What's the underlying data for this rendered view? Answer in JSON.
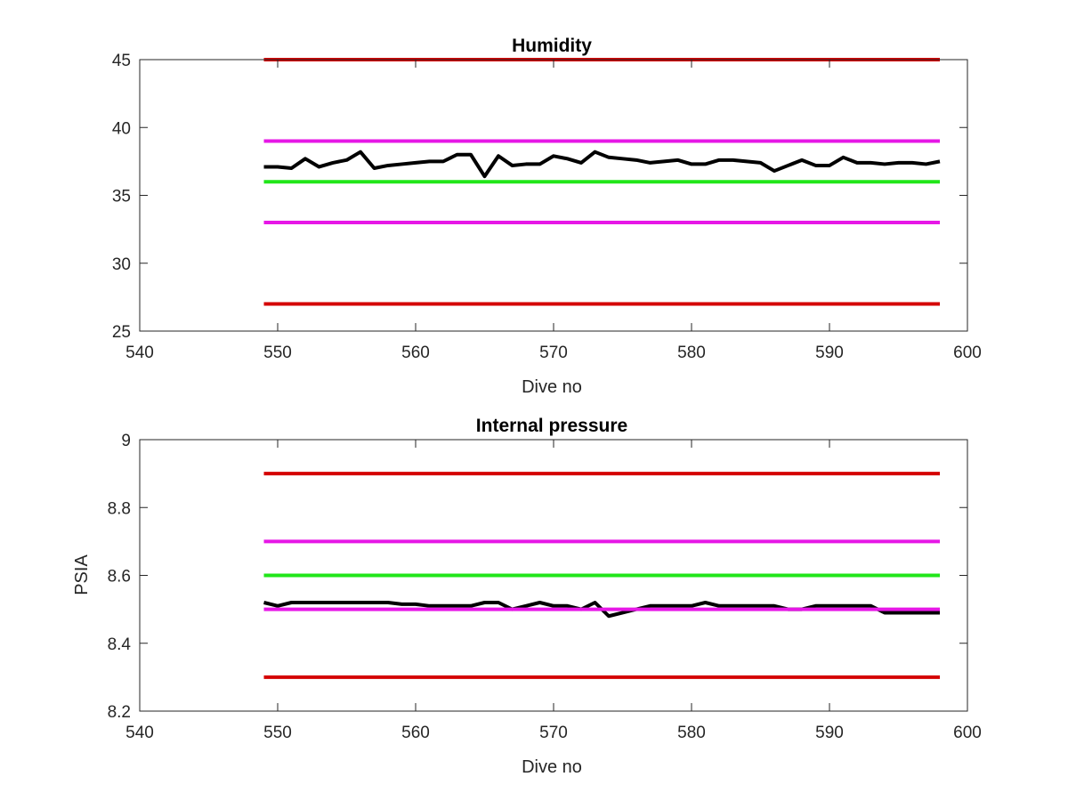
{
  "chart_data": [
    {
      "type": "line",
      "title": "Humidity",
      "xlabel": "Dive no",
      "ylabel": "",
      "xlim": [
        540,
        600
      ],
      "ylim": [
        25,
        45
      ],
      "xticks": [
        540,
        550,
        560,
        570,
        580,
        590,
        600
      ],
      "yticks": [
        25,
        30,
        35,
        40,
        45
      ],
      "xtick_labels": [
        "540",
        "550",
        "560",
        "570",
        "580",
        "590",
        "600"
      ],
      "ytick_labels": [
        "25",
        "30",
        "35",
        "40",
        "45"
      ],
      "grid": false,
      "series": [
        {
          "color": "#d40000",
          "width": 4,
          "x": [
            549,
            598
          ],
          "values": [
            45,
            45
          ]
        },
        {
          "color": "#e617e6",
          "width": 4,
          "x": [
            549,
            598
          ],
          "values": [
            39,
            39
          ]
        },
        {
          "color": "#21e619",
          "width": 4,
          "x": [
            549,
            598
          ],
          "values": [
            36,
            36
          ]
        },
        {
          "color": "#e617e6",
          "width": 4,
          "x": [
            549,
            598
          ],
          "values": [
            33,
            33
          ]
        },
        {
          "color": "#d40000",
          "width": 4,
          "x": [
            549,
            598
          ],
          "values": [
            27,
            27
          ]
        },
        {
          "color": "#000000",
          "width": 4,
          "x": [
            549,
            550,
            551,
            552,
            553,
            554,
            555,
            556,
            557,
            558,
            559,
            560,
            561,
            562,
            563,
            564,
            565,
            566,
            567,
            568,
            569,
            570,
            571,
            572,
            573,
            574,
            575,
            576,
            577,
            578,
            579,
            580,
            581,
            582,
            583,
            584,
            585,
            586,
            587,
            588,
            589,
            590,
            591,
            592,
            593,
            594,
            595,
            596,
            597,
            598
          ],
          "values": [
            37.1,
            37.1,
            37.0,
            37.7,
            37.1,
            37.4,
            37.6,
            38.2,
            37.0,
            37.2,
            37.3,
            37.4,
            37.5,
            37.5,
            38.0,
            38.0,
            36.4,
            37.9,
            37.2,
            37.3,
            37.3,
            37.9,
            37.7,
            37.4,
            38.2,
            37.8,
            37.7,
            37.6,
            37.4,
            37.5,
            37.6,
            37.3,
            37.3,
            37.6,
            37.6,
            37.5,
            37.4,
            36.8,
            37.2,
            37.6,
            37.2,
            37.2,
            37.8,
            37.4,
            37.4,
            37.3,
            37.4,
            37.4,
            37.3,
            37.5
          ]
        }
      ]
    },
    {
      "type": "line",
      "title": "Internal pressure",
      "xlabel": "Dive no",
      "ylabel": "PSIA",
      "xlim": [
        540,
        600
      ],
      "ylim": [
        8.2,
        9.0
      ],
      "xticks": [
        540,
        550,
        560,
        570,
        580,
        590,
        600
      ],
      "yticks": [
        8.2,
        8.4,
        8.6,
        8.8,
        9.0
      ],
      "xtick_labels": [
        "540",
        "550",
        "560",
        "570",
        "580",
        "590",
        "600"
      ],
      "ytick_labels": [
        "8.2",
        "8.4",
        "8.6",
        "8.8",
        "9"
      ],
      "grid": false,
      "series": [
        {
          "color": "#d40000",
          "width": 4,
          "x": [
            549,
            598
          ],
          "values": [
            8.9,
            8.9
          ]
        },
        {
          "color": "#e617e6",
          "width": 4,
          "x": [
            549,
            598
          ],
          "values": [
            8.7,
            8.7
          ]
        },
        {
          "color": "#21e619",
          "width": 4,
          "x": [
            549,
            598
          ],
          "values": [
            8.6,
            8.6
          ]
        },
        {
          "color": "#000000",
          "width": 4,
          "x": [
            549,
            550,
            551,
            552,
            553,
            554,
            555,
            556,
            557,
            558,
            559,
            560,
            561,
            562,
            563,
            564,
            565,
            566,
            567,
            568,
            569,
            570,
            571,
            572,
            573,
            574,
            575,
            576,
            577,
            578,
            579,
            580,
            581,
            582,
            583,
            584,
            585,
            586,
            587,
            588,
            589,
            590,
            591,
            592,
            593,
            594,
            595,
            596,
            597,
            598
          ],
          "values": [
            8.52,
            8.51,
            8.52,
            8.52,
            8.52,
            8.52,
            8.52,
            8.52,
            8.52,
            8.52,
            8.515,
            8.515,
            8.51,
            8.51,
            8.51,
            8.51,
            8.52,
            8.52,
            8.5,
            8.51,
            8.52,
            8.51,
            8.51,
            8.5,
            8.52,
            8.48,
            8.49,
            8.5,
            8.51,
            8.51,
            8.51,
            8.51,
            8.52,
            8.51,
            8.51,
            8.51,
            8.51,
            8.51,
            8.5,
            8.5,
            8.51,
            8.51,
            8.51,
            8.51,
            8.51,
            8.49,
            8.49,
            8.49,
            8.49,
            8.49
          ]
        },
        {
          "color": "#e617e6",
          "width": 4,
          "x": [
            549,
            598
          ],
          "values": [
            8.5,
            8.5
          ]
        },
        {
          "color": "#d40000",
          "width": 4,
          "x": [
            549,
            598
          ],
          "values": [
            8.3,
            8.3
          ]
        }
      ]
    }
  ]
}
